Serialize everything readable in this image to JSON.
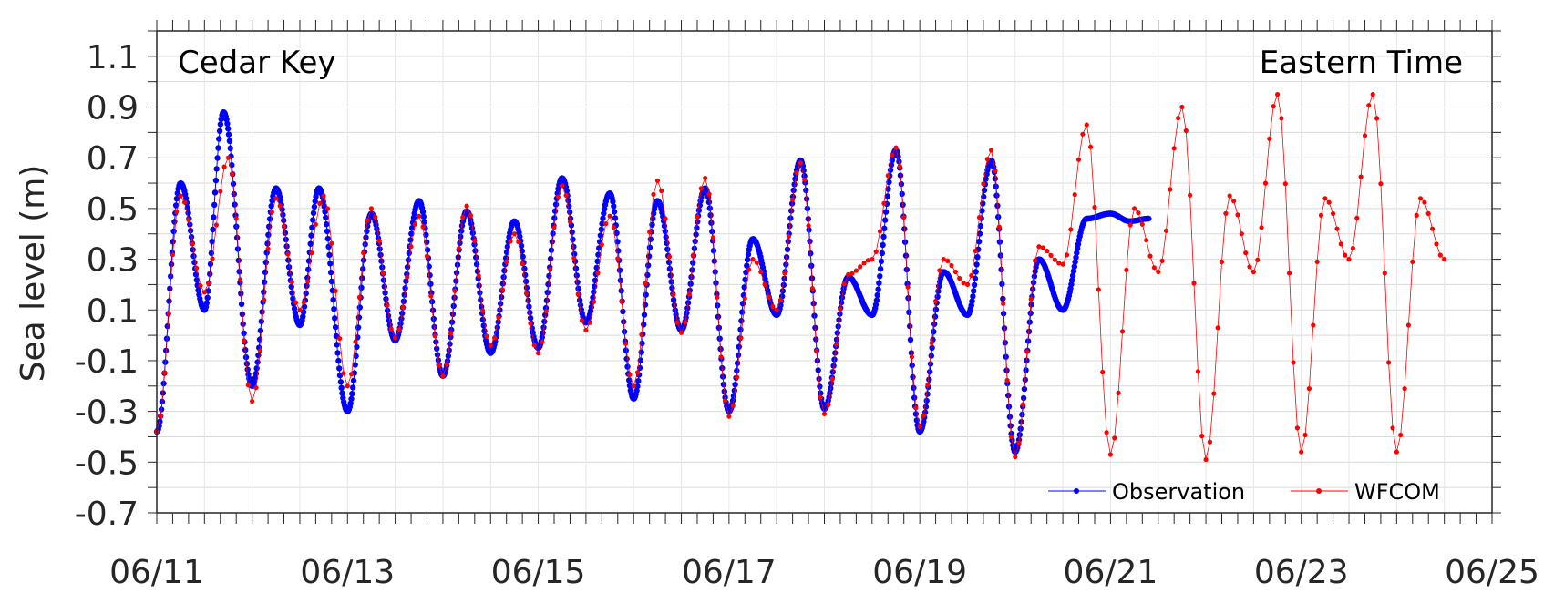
{
  "chart_data": {
    "type": "line",
    "title": "",
    "xlabel": "",
    "ylabel": "Sea level (m)",
    "location_label": "Cedar Key",
    "timezone_label": "Eastern Time",
    "xlim": [
      "06/11",
      "06/25"
    ],
    "ylim": [
      -0.7,
      1.2
    ],
    "x_ticks": [
      "06/11",
      "06/13",
      "06/15",
      "06/17",
      "06/19",
      "06/21",
      "06/23",
      "06/25"
    ],
    "y_ticks": [
      "1.1",
      "0.9",
      "0.7",
      "0.5",
      "0.3",
      "0.1",
      "-0.1",
      "-0.3",
      "-0.5",
      "-0.7"
    ],
    "y_tick_values": [
      1.1,
      0.9,
      0.7,
      0.5,
      0.3,
      0.1,
      -0.1,
      -0.3,
      -0.5,
      -0.7
    ],
    "grid": true,
    "legend_position": "bottom-right",
    "series": [
      {
        "name": "Observation",
        "color": "#0000ff",
        "marker": "dot",
        "x_days_from_0611": [
          0.0,
          0.25,
          0.5,
          0.7,
          1.0,
          1.25,
          1.5,
          1.7,
          2.0,
          2.25,
          2.5,
          2.75,
          3.0,
          3.25,
          3.5,
          3.75,
          4.0,
          4.25,
          4.5,
          4.75,
          5.0,
          5.25,
          5.5,
          5.75,
          6.0,
          6.25,
          6.5,
          6.75,
          7.0,
          7.25,
          7.5,
          7.75,
          8.0,
          8.25,
          8.5,
          8.75,
          9.0,
          9.25,
          9.5,
          9.75,
          10.0,
          10.2,
          10.4
        ],
        "y": [
          -0.38,
          0.6,
          0.1,
          0.88,
          -0.2,
          0.58,
          0.04,
          0.58,
          -0.3,
          0.48,
          -0.02,
          0.53,
          -0.16,
          0.49,
          -0.07,
          0.45,
          -0.05,
          0.62,
          0.05,
          0.56,
          -0.25,
          0.53,
          0.02,
          0.58,
          -0.3,
          0.38,
          0.08,
          0.69,
          -0.29,
          0.23,
          0.08,
          0.73,
          -0.38,
          0.25,
          0.08,
          0.69,
          -0.46,
          0.3,
          0.1,
          0.46,
          0.48,
          0.45,
          0.46
        ]
      },
      {
        "name": "WFCOM",
        "color": "#ff0000",
        "marker": "dot",
        "x_days_from_0611": [
          0.0,
          0.25,
          0.5,
          0.75,
          1.0,
          1.25,
          1.5,
          1.75,
          2.0,
          2.25,
          2.5,
          2.75,
          3.0,
          3.25,
          3.5,
          3.75,
          4.0,
          4.25,
          4.5,
          4.75,
          5.0,
          5.25,
          5.5,
          5.75,
          6.0,
          6.25,
          6.5,
          6.75,
          7.0,
          7.25,
          7.5,
          7.75,
          8.0,
          8.25,
          8.5,
          8.75,
          9.0,
          9.25,
          9.5,
          9.75,
          10.0,
          10.25,
          10.5,
          10.75,
          11.0,
          11.25,
          11.5,
          11.75,
          12.0,
          12.25,
          12.5,
          12.75,
          13.0,
          13.25,
          13.5
        ],
        "y": [
          -0.38,
          0.55,
          0.17,
          0.7,
          -0.26,
          0.54,
          0.1,
          0.55,
          -0.2,
          0.5,
          -0.01,
          0.47,
          -0.16,
          0.51,
          -0.04,
          0.4,
          -0.07,
          0.59,
          0.02,
          0.47,
          -0.2,
          0.61,
          0.01,
          0.62,
          -0.32,
          0.3,
          0.1,
          0.68,
          -0.31,
          0.24,
          0.3,
          0.74,
          -0.36,
          0.3,
          0.2,
          0.73,
          -0.48,
          0.35,
          0.28,
          0.83,
          -0.47,
          0.5,
          0.25,
          0.9,
          -0.49,
          0.55,
          0.25,
          0.95,
          -0.46,
          0.54,
          0.3,
          0.95,
          -0.46,
          0.54,
          0.3
        ]
      }
    ]
  }
}
